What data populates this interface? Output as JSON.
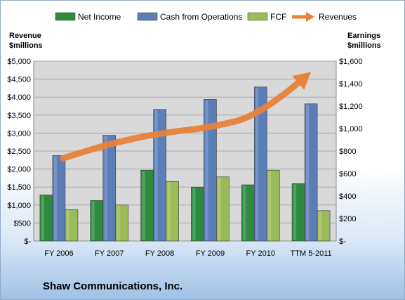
{
  "chart_data": {
    "type": "bar",
    "title": "Shaw Communications, Inc.",
    "categories": [
      "FY 2006",
      "FY 2007",
      "FY 2008",
      "FY 2009",
      "FY 2010",
      "TTM 5-2011"
    ],
    "series": [
      {
        "name": "Net Income",
        "axis": "right",
        "color": "#2e8b3e",
        "values": [
          410,
          360,
          630,
          480,
          500,
          510
        ]
      },
      {
        "name": "Cash from Operations",
        "axis": "right",
        "color": "#5b7db8",
        "values": [
          760,
          940,
          1170,
          1260,
          1370,
          1220
        ]
      },
      {
        "name": "FCF",
        "axis": "right",
        "color": "#9bbb59",
        "values": [
          280,
          320,
          530,
          570,
          630,
          270
        ]
      }
    ],
    "line_series": {
      "name": "Revenues",
      "axis": "left",
      "color": "#e8823a",
      "values": [
        2300,
        2700,
        3000,
        3150,
        3500,
        4700
      ]
    },
    "ylabel_left": "Revenue\n$millions",
    "ylabel_right": "Earnings\n$millions",
    "ylim_left": [
      0,
      5000
    ],
    "ylim_right": [
      0,
      1600
    ],
    "yticks_left": [
      "$-",
      "$500",
      "$1,000",
      "$1,500",
      "$2,000",
      "$2,500",
      "$3,000",
      "$3,500",
      "$4,000",
      "$4,500",
      "$5,000"
    ],
    "yticks_right": [
      "$-",
      "$200",
      "$400",
      "$600",
      "$800",
      "$1,000",
      "$1,200",
      "$1,400",
      "$1,600"
    ],
    "grid": true,
    "legend_position": "top"
  },
  "legend": [
    {
      "name": "Net Income",
      "color": "#2e8b3e",
      "type": "box"
    },
    {
      "name": "Cash from Operations",
      "color": "#5b7db8",
      "type": "box"
    },
    {
      "name": "FCF",
      "color": "#9bbb59",
      "type": "box"
    },
    {
      "name": "Revenues",
      "color": "#e8823a",
      "type": "arrow"
    }
  ],
  "axis_titles": {
    "left_line1": "Revenue",
    "left_line2": "$millions",
    "right_line1": "Earnings",
    "right_line2": "$millions"
  },
  "company": "Shaw Communications, Inc."
}
